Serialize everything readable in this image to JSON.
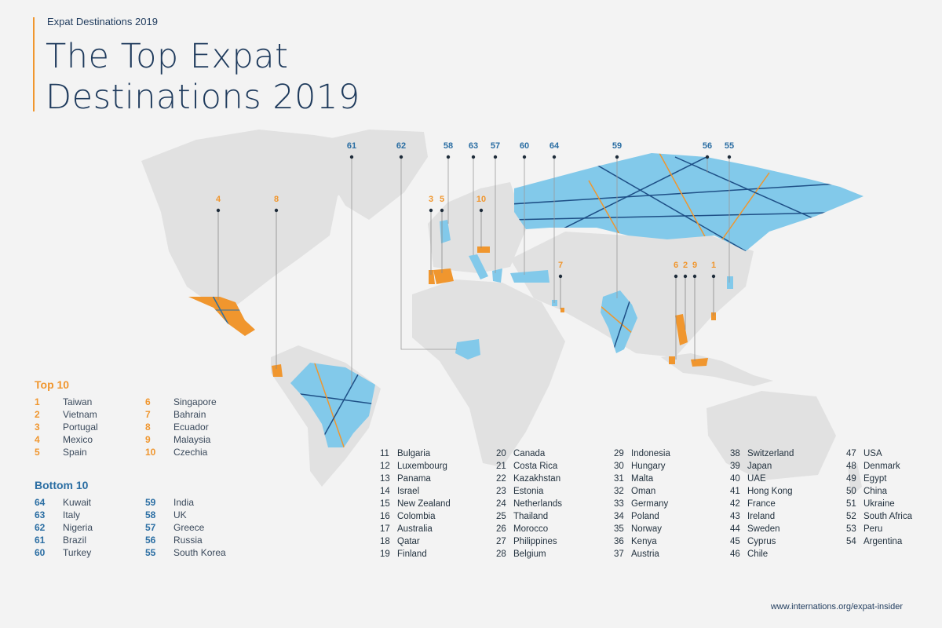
{
  "header": {
    "eyebrow": "Expat Destinations 2019",
    "title_line1": "The Top Expat",
    "title_line2": "Destinations 2019"
  },
  "colors": {
    "top": "#f0962e",
    "bottom": "#82c9ea",
    "bottom_text": "#2b6ea3",
    "land": "#e1e1e1",
    "title": "#1e3a5c",
    "accent": "#f0962e"
  },
  "top10": {
    "heading": "Top 10",
    "items": [
      {
        "rank": "1",
        "name": "Taiwan"
      },
      {
        "rank": "2",
        "name": "Vietnam"
      },
      {
        "rank": "3",
        "name": "Portugal"
      },
      {
        "rank": "4",
        "name": "Mexico"
      },
      {
        "rank": "5",
        "name": "Spain"
      },
      {
        "rank": "6",
        "name": "Singapore"
      },
      {
        "rank": "7",
        "name": "Bahrain"
      },
      {
        "rank": "8",
        "name": "Ecuador"
      },
      {
        "rank": "9",
        "name": "Malaysia"
      },
      {
        "rank": "10",
        "name": "Czechia"
      }
    ]
  },
  "bottom10": {
    "heading": "Bottom 10",
    "items": [
      {
        "rank": "64",
        "name": "Kuwait"
      },
      {
        "rank": "63",
        "name": "Italy"
      },
      {
        "rank": "62",
        "name": "Nigeria"
      },
      {
        "rank": "61",
        "name": "Brazil"
      },
      {
        "rank": "60",
        "name": "Turkey"
      },
      {
        "rank": "59",
        "name": "India"
      },
      {
        "rank": "58",
        "name": "UK"
      },
      {
        "rank": "57",
        "name": "Greece"
      },
      {
        "rank": "56",
        "name": "Russia"
      },
      {
        "rank": "55",
        "name": "South Korea"
      }
    ]
  },
  "middle_ranks": [
    {
      "rank": "11",
      "name": "Bulgaria"
    },
    {
      "rank": "12",
      "name": "Luxembourg"
    },
    {
      "rank": "13",
      "name": "Panama"
    },
    {
      "rank": "14",
      "name": "Israel"
    },
    {
      "rank": "15",
      "name": "New Zealand"
    },
    {
      "rank": "16",
      "name": "Colombia"
    },
    {
      "rank": "17",
      "name": "Australia"
    },
    {
      "rank": "18",
      "name": "Qatar"
    },
    {
      "rank": "19",
      "name": "Finland"
    },
    {
      "rank": "20",
      "name": "Canada"
    },
    {
      "rank": "21",
      "name": "Costa Rica"
    },
    {
      "rank": "22",
      "name": "Kazakhstan"
    },
    {
      "rank": "23",
      "name": "Estonia"
    },
    {
      "rank": "24",
      "name": "Netherlands"
    },
    {
      "rank": "25",
      "name": "Thailand"
    },
    {
      "rank": "26",
      "name": "Morocco"
    },
    {
      "rank": "27",
      "name": "Philippines"
    },
    {
      "rank": "28",
      "name": "Belgium"
    },
    {
      "rank": "29",
      "name": "Indonesia"
    },
    {
      "rank": "30",
      "name": "Hungary"
    },
    {
      "rank": "31",
      "name": "Malta"
    },
    {
      "rank": "32",
      "name": "Oman"
    },
    {
      "rank": "33",
      "name": "Germany"
    },
    {
      "rank": "34",
      "name": "Poland"
    },
    {
      "rank": "35",
      "name": "Norway"
    },
    {
      "rank": "36",
      "name": "Kenya"
    },
    {
      "rank": "37",
      "name": "Austria"
    },
    {
      "rank": "38",
      "name": "Switzerland"
    },
    {
      "rank": "39",
      "name": "Japan"
    },
    {
      "rank": "40",
      "name": "UAE"
    },
    {
      "rank": "41",
      "name": "Hong Kong"
    },
    {
      "rank": "42",
      "name": "France"
    },
    {
      "rank": "43",
      "name": "Ireland"
    },
    {
      "rank": "44",
      "name": "Sweden"
    },
    {
      "rank": "45",
      "name": "Cyprus"
    },
    {
      "rank": "46",
      "name": "Chile"
    },
    {
      "rank": "47",
      "name": "USA"
    },
    {
      "rank": "48",
      "name": "Denmark"
    },
    {
      "rank": "49",
      "name": "Egypt"
    },
    {
      "rank": "50",
      "name": "China"
    },
    {
      "rank": "51",
      "name": "Ukraine"
    },
    {
      "rank": "52",
      "name": "South Africa"
    },
    {
      "rank": "53",
      "name": "Peru"
    },
    {
      "rank": "54",
      "name": "Argentina"
    }
  ],
  "map_markers": [
    {
      "rank": "61",
      "country": "Brazil",
      "group": "bottom"
    },
    {
      "rank": "62",
      "country": "Nigeria",
      "group": "bottom"
    },
    {
      "rank": "58",
      "country": "UK",
      "group": "bottom"
    },
    {
      "rank": "63",
      "country": "Italy",
      "group": "bottom"
    },
    {
      "rank": "57",
      "country": "Greece",
      "group": "bottom"
    },
    {
      "rank": "60",
      "country": "Turkey",
      "group": "bottom"
    },
    {
      "rank": "64",
      "country": "Kuwait",
      "group": "bottom"
    },
    {
      "rank": "59",
      "country": "India",
      "group": "bottom"
    },
    {
      "rank": "56",
      "country": "Russia",
      "group": "bottom"
    },
    {
      "rank": "55",
      "country": "South Korea",
      "group": "bottom"
    },
    {
      "rank": "4",
      "country": "Mexico",
      "group": "top"
    },
    {
      "rank": "8",
      "country": "Ecuador",
      "group": "top"
    },
    {
      "rank": "3",
      "country": "Portugal",
      "group": "top"
    },
    {
      "rank": "5",
      "country": "Spain",
      "group": "top"
    },
    {
      "rank": "10",
      "country": "Czechia",
      "group": "top"
    },
    {
      "rank": "7",
      "country": "Bahrain",
      "group": "top"
    },
    {
      "rank": "6",
      "country": "Singapore",
      "group": "top"
    },
    {
      "rank": "2",
      "country": "Vietnam",
      "group": "top"
    },
    {
      "rank": "9",
      "country": "Malaysia",
      "group": "top"
    },
    {
      "rank": "1",
      "country": "Taiwan",
      "group": "top"
    }
  ],
  "footer": {
    "source": "www.internations.org/expat-insider"
  }
}
